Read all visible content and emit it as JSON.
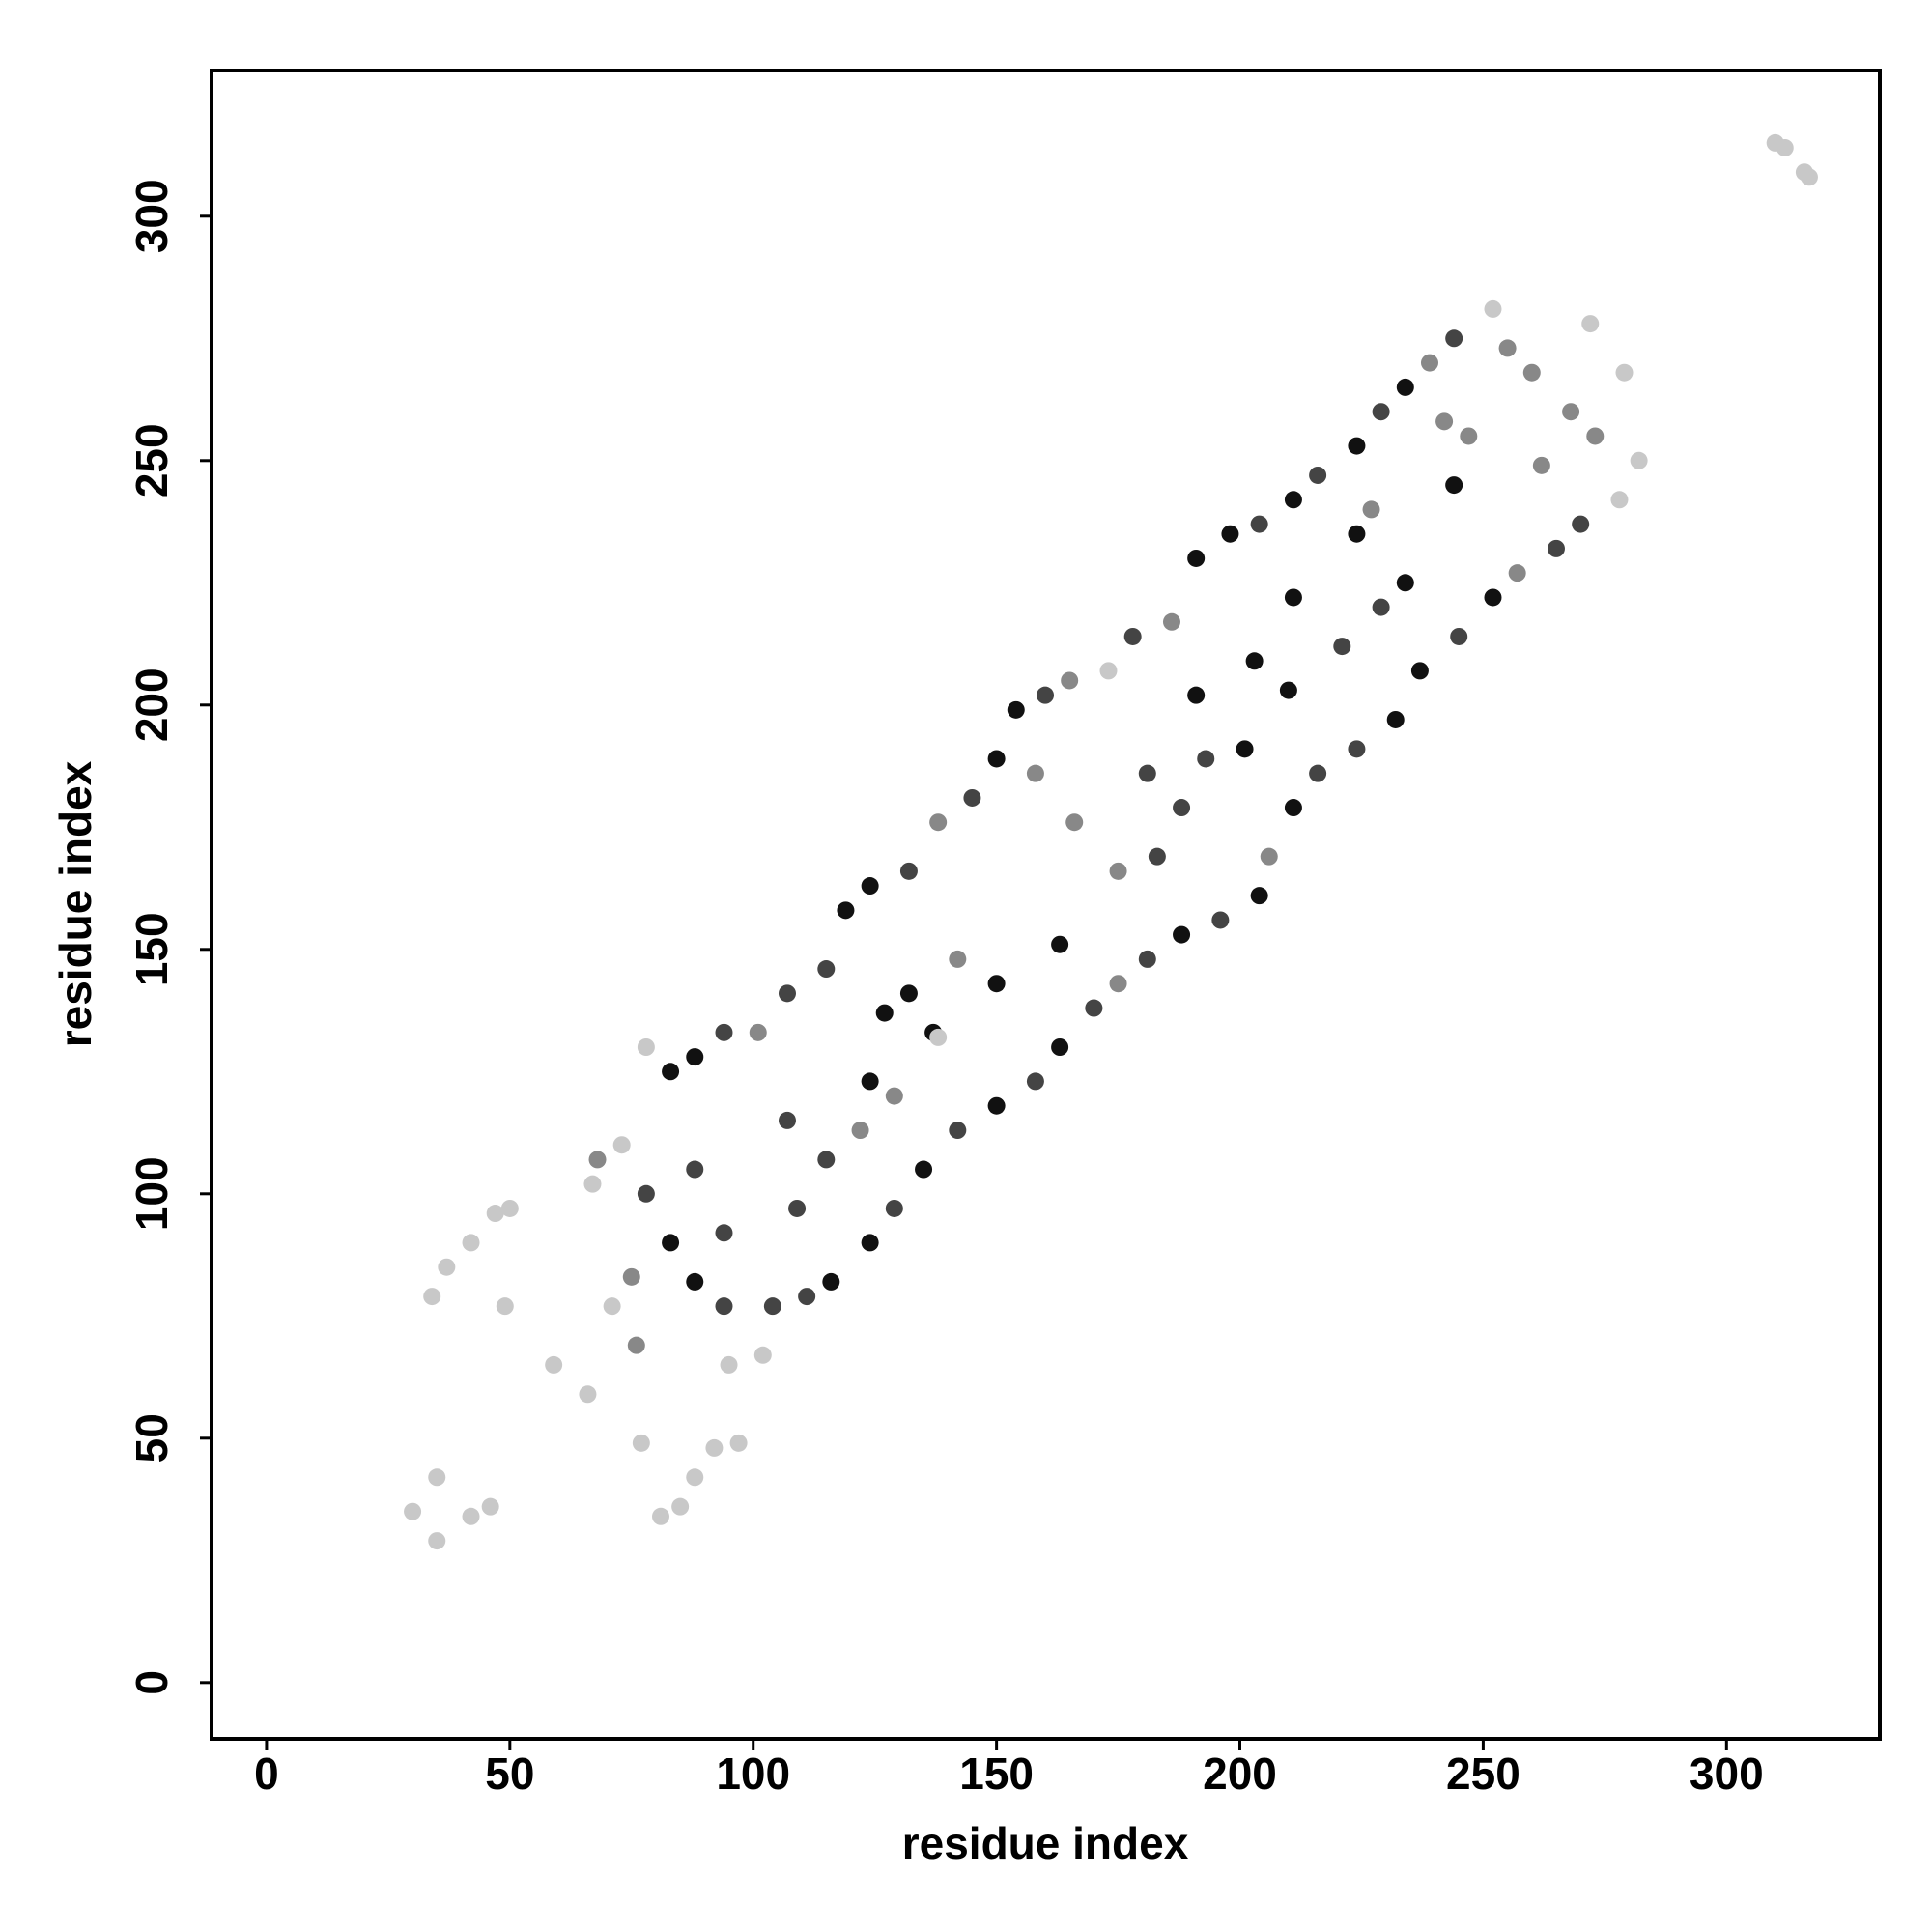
{
  "chart_data": {
    "type": "scatter",
    "xlabel": "residue index",
    "ylabel": "residue index",
    "xlim": [
      -11.3,
      331.5
    ],
    "ylim": [
      -11.5,
      329.8
    ],
    "xticks": [
      0,
      50,
      100,
      150,
      200,
      250,
      300
    ],
    "yticks": [
      0,
      50,
      100,
      150,
      200,
      250,
      300
    ],
    "grid": false,
    "series": [
      {
        "color": "#111111",
        "x": [
          83,
          88,
          119,
          124,
          150,
          154,
          191,
          198,
          211,
          224,
          234,
          83,
          88,
          116,
          124,
          135,
          150,
          163,
          188,
          204,
          211,
          232,
          237,
          252,
          124,
          137,
          132,
          163,
          191,
          201,
          211,
          224,
          234,
          244,
          203,
          210,
          127,
          150
        ],
        "y": [
          125,
          128,
          158,
          163,
          189,
          199,
          230,
          235,
          242,
          253,
          265,
          90,
          82,
          82,
          90,
          105,
          118,
          130,
          153,
          161,
          179,
          197,
          207,
          222,
          123,
          133,
          141,
          151,
          202,
          191,
          222,
          235,
          225,
          245,
          209,
          203,
          137,
          143
        ]
      },
      {
        "color": "#444444",
        "x": [
          94,
          107,
          115,
          132,
          145,
          160,
          178,
          204,
          216,
          229,
          244,
          78,
          94,
          104,
          111,
          129,
          142,
          158,
          170,
          181,
          196,
          216,
          224,
          245,
          265,
          270,
          88,
          94,
          107,
          115,
          221,
          188,
          181,
          229,
          193,
          183,
          109
        ],
        "y": [
          133,
          141,
          146,
          166,
          181,
          202,
          214,
          237,
          247,
          260,
          275,
          100,
          77,
          77,
          79,
          97,
          113,
          123,
          138,
          148,
          156,
          186,
          191,
          214,
          232,
          237,
          105,
          92,
          115,
          107,
          212,
          179,
          186,
          220,
          189,
          169,
          97
        ]
      },
      {
        "color": "#888888",
        "x": [
          101,
          138,
          165,
          186,
          239,
          255,
          260,
          175,
          206,
          257,
          273,
          268,
          129,
          142,
          166,
          175,
          227,
          247,
          262,
          242,
          158,
          122,
          75,
          76,
          68
        ],
        "y": [
          133,
          176,
          205,
          217,
          270,
          273,
          268,
          143,
          169,
          227,
          255,
          260,
          120,
          148,
          176,
          166,
          240,
          255,
          249,
          258,
          186,
          113,
          83,
          69,
          107
        ]
      },
      {
        "color": "#c8c8c8",
        "x": [
          78,
          173,
          252,
          278,
          282,
          279,
          272,
          138,
          30,
          35,
          35,
          34,
          37,
          42,
          47,
          50,
          49,
          42,
          46,
          59,
          66,
          67,
          71,
          77,
          81,
          85,
          88,
          92,
          97,
          95,
          102,
          73,
          310,
          316,
          312,
          317
        ],
        "y": [
          130,
          207,
          281,
          242,
          250,
          268,
          278,
          132,
          35,
          29,
          42,
          79,
          85,
          90,
          96,
          97,
          77,
          34,
          36,
          65,
          59,
          102,
          77,
          49,
          34,
          36,
          42,
          48,
          49,
          65,
          67,
          110,
          315,
          309,
          314,
          308
        ]
      }
    ]
  }
}
